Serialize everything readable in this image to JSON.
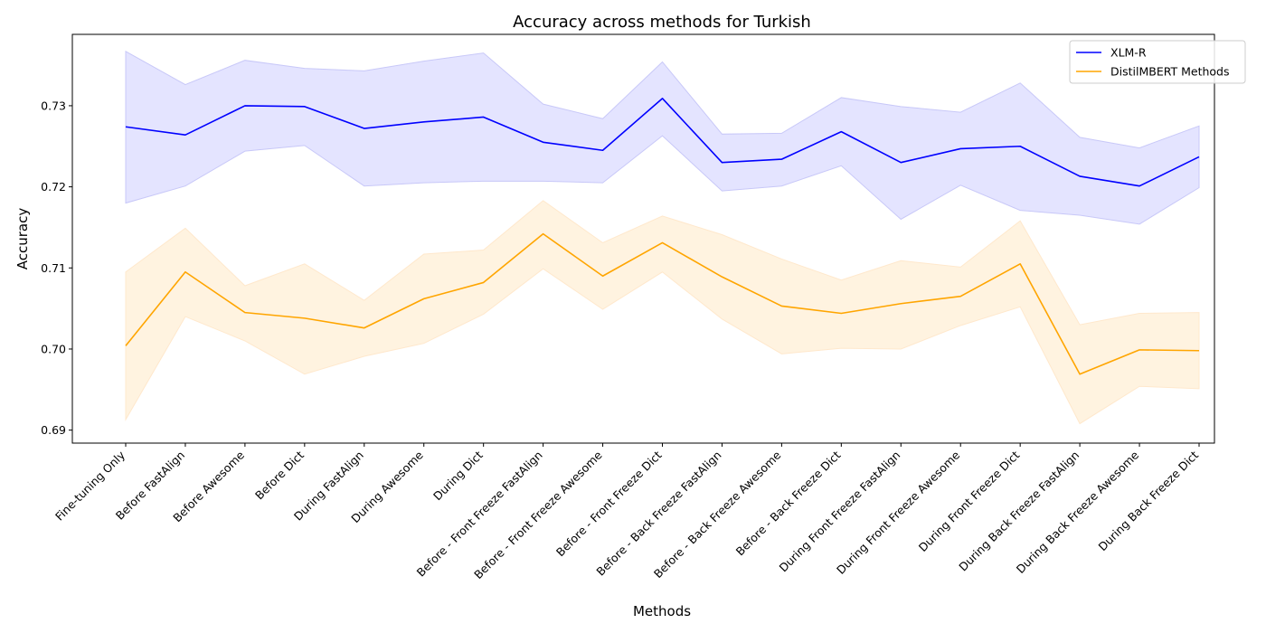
{
  "chart_data": {
    "type": "line",
    "title": "Accuracy across methods for Turkish",
    "xlabel": "Methods",
    "ylabel": "Accuracy",
    "ylim": [
      0.6884,
      0.7388
    ],
    "yticks": [
      0.69,
      0.7,
      0.71,
      0.72,
      0.73
    ],
    "ytick_labels": [
      "0.69",
      "0.70",
      "0.71",
      "0.72",
      "0.73"
    ],
    "grid": false,
    "legend_position": "top-right",
    "categories": [
      "Fine-tuning Only",
      "Before FastAlign",
      "Before Awesome",
      "Before Dict",
      "During FastAlign",
      "During Awesome",
      "During Dict",
      "Before - Front Freeze FastAlign",
      "Before - Front Freeze Awesome",
      "Before - Front Freeze Dict",
      "Before - Back Freeze FastAlign",
      "Before - Back Freeze Awesome",
      "Before - Back Freeze Dict",
      "During Front Freeze FastAlign",
      "During Front Freeze Awesome",
      "During Front Freeze Dict",
      "During Back Freeze FastAlign",
      "During Back Freeze Awesome",
      "During Back Freeze Dict"
    ],
    "series": [
      {
        "name": "XLM-R",
        "color": "#0000ff",
        "band_color": "#e4e4ff",
        "band_edge_color": "#c8c8f8",
        "values": [
          0.7274,
          0.7264,
          0.73,
          0.7299,
          0.7272,
          0.728,
          0.7286,
          0.7255,
          0.7245,
          0.7309,
          0.723,
          0.7234,
          0.7268,
          0.723,
          0.7247,
          0.725,
          0.7213,
          0.7201,
          0.7237
        ],
        "upper": [
          0.7367,
          0.7326,
          0.7356,
          0.7346,
          0.7343,
          0.7355,
          0.7365,
          0.7302,
          0.7284,
          0.7354,
          0.7265,
          0.7266,
          0.731,
          0.7299,
          0.7292,
          0.7328,
          0.7261,
          0.7248,
          0.7275
        ],
        "lower": [
          0.718,
          0.7201,
          0.7244,
          0.7251,
          0.7201,
          0.7205,
          0.7207,
          0.7207,
          0.7205,
          0.7263,
          0.7195,
          0.7201,
          0.7226,
          0.716,
          0.7202,
          0.7171,
          0.7165,
          0.7154,
          0.7199
        ]
      },
      {
        "name": "DistilMBERT Methods",
        "color": "#ffa500",
        "band_color": "#fff3e0",
        "band_edge_color": "#ffe8cc",
        "values": [
          0.7004,
          0.7095,
          0.7045,
          0.7038,
          0.7026,
          0.7062,
          0.7082,
          0.7142,
          0.709,
          0.7131,
          0.7089,
          0.7053,
          0.7044,
          0.7056,
          0.7065,
          0.7105,
          0.6969,
          0.6999,
          0.6998
        ],
        "upper": [
          0.7095,
          0.7149,
          0.7078,
          0.7105,
          0.706,
          0.7117,
          0.7122,
          0.7183,
          0.7131,
          0.7164,
          0.7141,
          0.7111,
          0.7085,
          0.7109,
          0.7101,
          0.7158,
          0.703,
          0.7044,
          0.7045
        ],
        "lower": [
          0.6913,
          0.704,
          0.701,
          0.6969,
          0.6991,
          0.7007,
          0.7043,
          0.7099,
          0.7049,
          0.7095,
          0.7037,
          0.6994,
          0.7001,
          0.7,
          0.7029,
          0.7052,
          0.6908,
          0.6954,
          0.6951
        ]
      }
    ]
  }
}
